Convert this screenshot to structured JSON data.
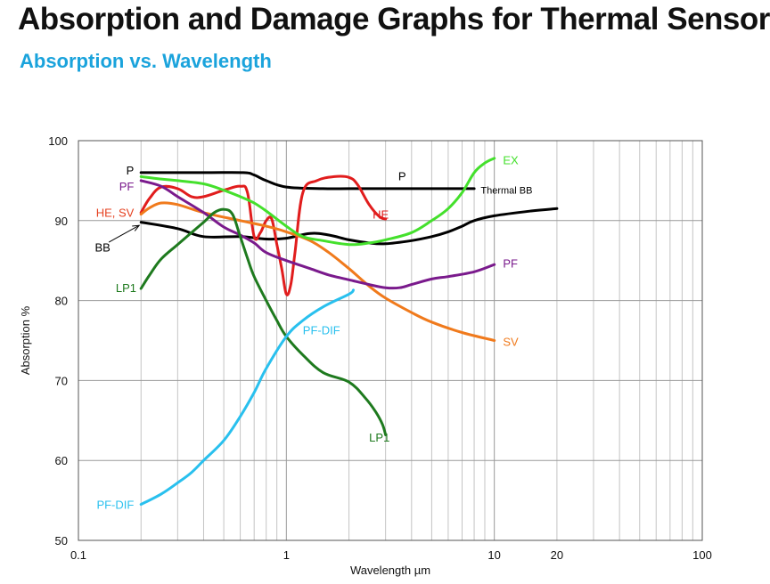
{
  "header": {
    "title": "Absorption and Damage Graphs for Thermal Sensors",
    "subtitle": "Absorption vs. Wavelength",
    "subtitle_color": "#1aa3dc"
  },
  "chart_data": {
    "type": "line",
    "xlabel": "Wavelength µm",
    "ylabel": "Absorption %",
    "x_scale": "log",
    "xlim": [
      0.1,
      100
    ],
    "ylim": [
      50,
      100
    ],
    "x_ticks": [
      {
        "value": 0.1,
        "label": "0.1"
      },
      {
        "value": 1,
        "label": "1"
      },
      {
        "value": 10,
        "label": "10"
      },
      {
        "value": 20,
        "label": "20"
      },
      {
        "value": 100,
        "label": "100"
      }
    ],
    "y_ticks": [
      {
        "value": 50,
        "label": "50"
      },
      {
        "value": 60,
        "label": "60"
      },
      {
        "value": 70,
        "label": "70"
      },
      {
        "value": 80,
        "label": "80"
      },
      {
        "value": 90,
        "label": "90"
      },
      {
        "value": 100,
        "label": "100"
      }
    ],
    "grid": true,
    "series": [
      {
        "name": "P",
        "color": "#000000",
        "x": [
          0.2,
          0.4,
          0.62,
          0.7,
          0.8,
          1.0,
          1.5,
          2,
          3,
          5,
          8
        ],
        "y": [
          96,
          96,
          96,
          95.7,
          95,
          94.2,
          94,
          94,
          94,
          94,
          94
        ]
      },
      {
        "name": "Thermal BB",
        "color": "#000000",
        "x": [
          0.2,
          0.3,
          0.4,
          0.6,
          0.8,
          1.0,
          1.3,
          1.6,
          2,
          2.5,
          3,
          4,
          5,
          6,
          7,
          8,
          10,
          15,
          20
        ],
        "y": [
          89.8,
          89,
          88,
          88,
          87.7,
          87.8,
          88.4,
          88.2,
          87.6,
          87.2,
          87.1,
          87.5,
          88,
          88.6,
          89.3,
          90,
          90.6,
          91.2,
          91.5
        ]
      },
      {
        "name": "HE",
        "color": "#e11d1d",
        "x": [
          0.2,
          0.22,
          0.25,
          0.3,
          0.35,
          0.4,
          0.5,
          0.6,
          0.65,
          0.7,
          0.75,
          0.8,
          0.85,
          0.9,
          0.95,
          1.0,
          1.05,
          1.1,
          1.2,
          1.4,
          1.7,
          2.0,
          2.2,
          2.5,
          2.8,
          3.0
        ],
        "y": [
          91,
          92.8,
          94.2,
          94,
          93,
          93,
          93.8,
          94.3,
          93.5,
          88,
          88.5,
          90,
          90.2,
          87,
          84,
          80.8,
          82,
          86,
          93.5,
          95,
          95.5,
          95.4,
          94.5,
          92,
          90.5,
          90.2
        ]
      },
      {
        "name": "SV",
        "color": "#f07a1c",
        "x": [
          0.2,
          0.22,
          0.25,
          0.3,
          0.4,
          0.6,
          0.8,
          1.0,
          1.3,
          1.6,
          2,
          2.5,
          3,
          4,
          5,
          7,
          10
        ],
        "y": [
          90.8,
          91.6,
          92.2,
          92,
          91,
          90,
          89.3,
          88.6,
          87.5,
          86,
          84,
          81.8,
          80.3,
          78.5,
          77.3,
          76,
          75
        ]
      },
      {
        "name": "PF",
        "color": "#7a1a8c",
        "x": [
          0.2,
          0.25,
          0.3,
          0.4,
          0.5,
          0.6,
          0.7,
          0.8,
          1.0,
          1.3,
          1.6,
          2,
          2.5,
          3,
          3.5,
          4,
          5,
          6,
          8,
          10
        ],
        "y": [
          95,
          94.3,
          93,
          91,
          89.2,
          88.2,
          87.2,
          86,
          85,
          84,
          83.2,
          82.6,
          82,
          81.6,
          81.6,
          82,
          82.7,
          83,
          83.6,
          84.5
        ]
      },
      {
        "name": "EX",
        "color": "#44e02c",
        "x": [
          0.2,
          0.25,
          0.3,
          0.4,
          0.5,
          0.6,
          0.7,
          0.8,
          1.0,
          1.2,
          1.5,
          2,
          2.5,
          3,
          4,
          5,
          6,
          7,
          8,
          9,
          10
        ],
        "y": [
          95.5,
          95.2,
          95,
          94.6,
          93.8,
          93,
          92.2,
          91.2,
          89.3,
          88,
          87.5,
          87,
          87.2,
          87.6,
          88.5,
          90,
          91.5,
          93.5,
          96,
          97.2,
          97.8
        ]
      },
      {
        "name": "LP1",
        "color": "#1e7a1e",
        "x": [
          0.2,
          0.22,
          0.25,
          0.3,
          0.35,
          0.4,
          0.45,
          0.5,
          0.55,
          0.6,
          0.65,
          0.7,
          0.8,
          0.9,
          1.0,
          1.2,
          1.5,
          2.0,
          2.4,
          2.7,
          2.9,
          3.0
        ],
        "y": [
          81.5,
          83.2,
          85.2,
          87,
          88.5,
          89.8,
          91,
          91.4,
          90.8,
          88,
          85.3,
          83,
          80,
          77.5,
          75.5,
          73.2,
          71,
          69.8,
          67.8,
          66,
          64.5,
          63.2
        ]
      },
      {
        "name": "PF-DIF",
        "color": "#29c0ee",
        "x": [
          0.2,
          0.25,
          0.3,
          0.35,
          0.4,
          0.5,
          0.6,
          0.7,
          0.8,
          1.0,
          1.2,
          1.5,
          2.0,
          2.1
        ],
        "y": [
          54.5,
          55.8,
          57.2,
          58.5,
          60,
          62.5,
          65.5,
          68.5,
          71.5,
          75.5,
          77.5,
          79.2,
          80.8,
          81.3
        ]
      }
    ],
    "annotations": [
      {
        "text": "P",
        "x": 0.185,
        "y": 96.2,
        "color": "#000000",
        "anchor": "end"
      },
      {
        "text": "PF",
        "x": 0.185,
        "y": 94.2,
        "color": "#7a1a8c",
        "anchor": "end"
      },
      {
        "text": "HE, SV",
        "x": 0.185,
        "y": 90.9,
        "color": "#e5401f",
        "anchor": "end"
      },
      {
        "text": "BB",
        "x": 0.12,
        "y": 86.6,
        "color": "#000000",
        "anchor": "start"
      },
      {
        "text": "LP1",
        "x": 0.19,
        "y": 81.5,
        "color": "#1e7a1e",
        "anchor": "end"
      },
      {
        "text": "P",
        "x": 3.45,
        "y": 95.5,
        "color": "#000000",
        "anchor": "start"
      },
      {
        "text": "Thermal BB",
        "x": 8.6,
        "y": 93.8,
        "color": "#000000",
        "anchor": "start",
        "small": true
      },
      {
        "text": "HE",
        "x": 2.6,
        "y": 90.7,
        "color": "#e11d1d",
        "anchor": "start"
      },
      {
        "text": "EX",
        "x": 11,
        "y": 97.5,
        "color": "#44e02c",
        "anchor": "start"
      },
      {
        "text": "PF",
        "x": 11,
        "y": 84.6,
        "color": "#7a1a8c",
        "anchor": "start"
      },
      {
        "text": "SV",
        "x": 11,
        "y": 74.8,
        "color": "#f07a1c",
        "anchor": "start"
      },
      {
        "text": "PF-DIF",
        "x": 1.2,
        "y": 76.2,
        "color": "#29c0ee",
        "anchor": "start"
      },
      {
        "text": "LP1",
        "x": 2.5,
        "y": 62.8,
        "color": "#1e7a1e",
        "anchor": "start"
      },
      {
        "text": "PF-DIF",
        "x": 0.185,
        "y": 54.4,
        "color": "#29c0ee",
        "anchor": "end"
      }
    ],
    "pointer": {
      "from": [
        0.14,
        87.3
      ],
      "to": [
        0.196,
        89.4
      ]
    }
  }
}
